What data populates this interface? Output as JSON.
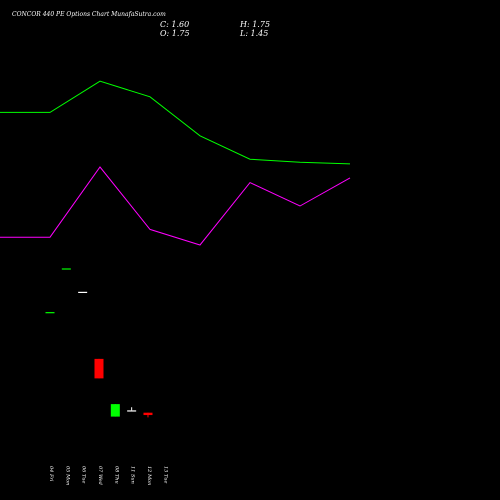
{
  "header": {
    "title": "CONCOR 440  PE Options  Chart MunafaSutra.com",
    "close": "C: 1.60",
    "open": "O: 1.75",
    "high": "H: 1.75",
    "low": "L: 1.45"
  },
  "chart_data": {
    "type": "candlestick",
    "title": "CONCOR 440  PE Options  Chart MunafaSutra.com",
    "x_tick_labels": [
      "04 Fri",
      "05 Mon",
      "06 Tue",
      "07 Wed",
      "08 Thu",
      "11 Sun",
      "12 Mon",
      "13 Tue"
    ],
    "candles": [
      {
        "label": "04 Fri",
        "open": 8.2,
        "high": 8.2,
        "low": 8.2,
        "close": 8.2,
        "color": "#00ff00"
      },
      {
        "label": "05 Mon",
        "open": 11.0,
        "high": 11.0,
        "low": 11.0,
        "close": 11.0,
        "color": "#00ff00"
      },
      {
        "label": "06 Tue",
        "open": 9.5,
        "high": 9.5,
        "low": 9.5,
        "close": 9.5,
        "color": "#ffffff"
      },
      {
        "label": "07 Wed",
        "open": 5.2,
        "high": 5.2,
        "low": 3.95,
        "close": 3.95,
        "color": "#ff0000"
      },
      {
        "label": "08 Thu",
        "open": 1.5,
        "high": 2.3,
        "low": 1.5,
        "close": 2.3,
        "color": "#00ff00"
      },
      {
        "label": "11 Sun",
        "open": 1.9,
        "high": 2.1,
        "low": 1.9,
        "close": 1.9,
        "color": "#ffffff"
      },
      {
        "label": "12 Mon",
        "open": 1.75,
        "high": 1.75,
        "low": 1.45,
        "close": 1.6,
        "color": "#ff0000"
      }
    ],
    "series": [
      {
        "color": "#00ff00",
        "values": [
          null,
          21.0,
          21.0,
          23.0,
          22.0,
          19.5,
          18.0,
          17.8,
          17.7
        ]
      },
      {
        "color": "#ff00ff",
        "values": [
          null,
          13.0,
          13.0,
          17.5,
          13.5,
          12.5,
          16.5,
          15.0,
          16.8
        ]
      }
    ],
    "y_domain": [
      0,
      25
    ]
  }
}
